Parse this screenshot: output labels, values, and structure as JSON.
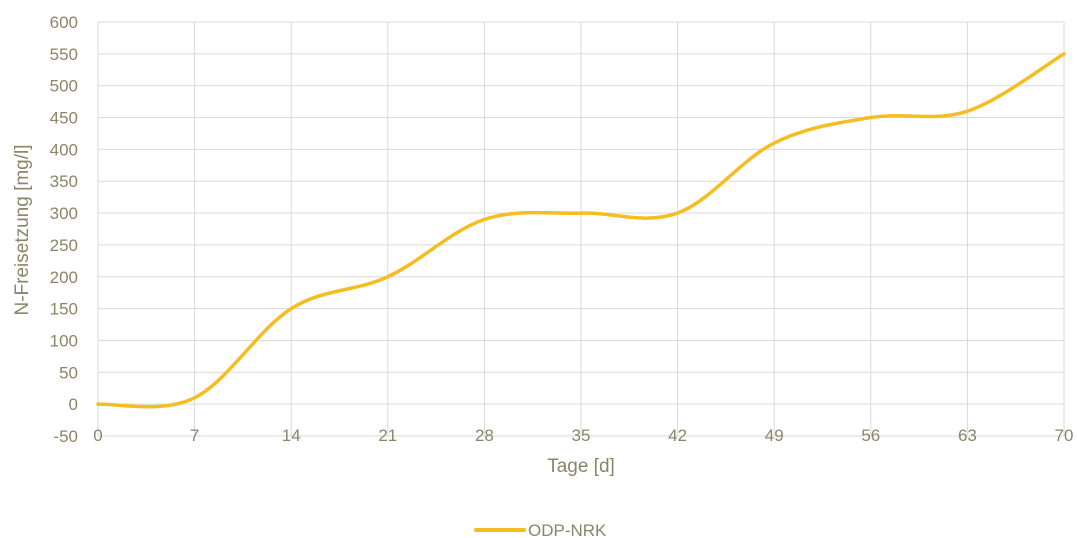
{
  "chart_data": {
    "type": "line",
    "xlabel": "Tage [d]",
    "ylabel": "N-Freisetzung [mg/l]",
    "x": [
      0,
      7,
      14,
      21,
      28,
      35,
      42,
      49,
      56,
      63,
      70
    ],
    "xticks": [
      "0",
      "7",
      "14",
      "21",
      "28",
      "35",
      "42",
      "49",
      "56",
      "63",
      "70"
    ],
    "yticks": [
      "600",
      "550",
      "500",
      "450",
      "400",
      "350",
      "300",
      "250",
      "200",
      "150",
      "100",
      "50",
      "0",
      "-50"
    ],
    "xlim": [
      0,
      70
    ],
    "ylim": [
      -50,
      600
    ],
    "grid": true,
    "smooth": true,
    "legend_position": "bottom",
    "series": [
      {
        "name": "ODP-NRK",
        "color": "#f5bd1f",
        "values": [
          0,
          10,
          150,
          200,
          290,
          300,
          300,
          410,
          450,
          460,
          550
        ]
      }
    ]
  }
}
